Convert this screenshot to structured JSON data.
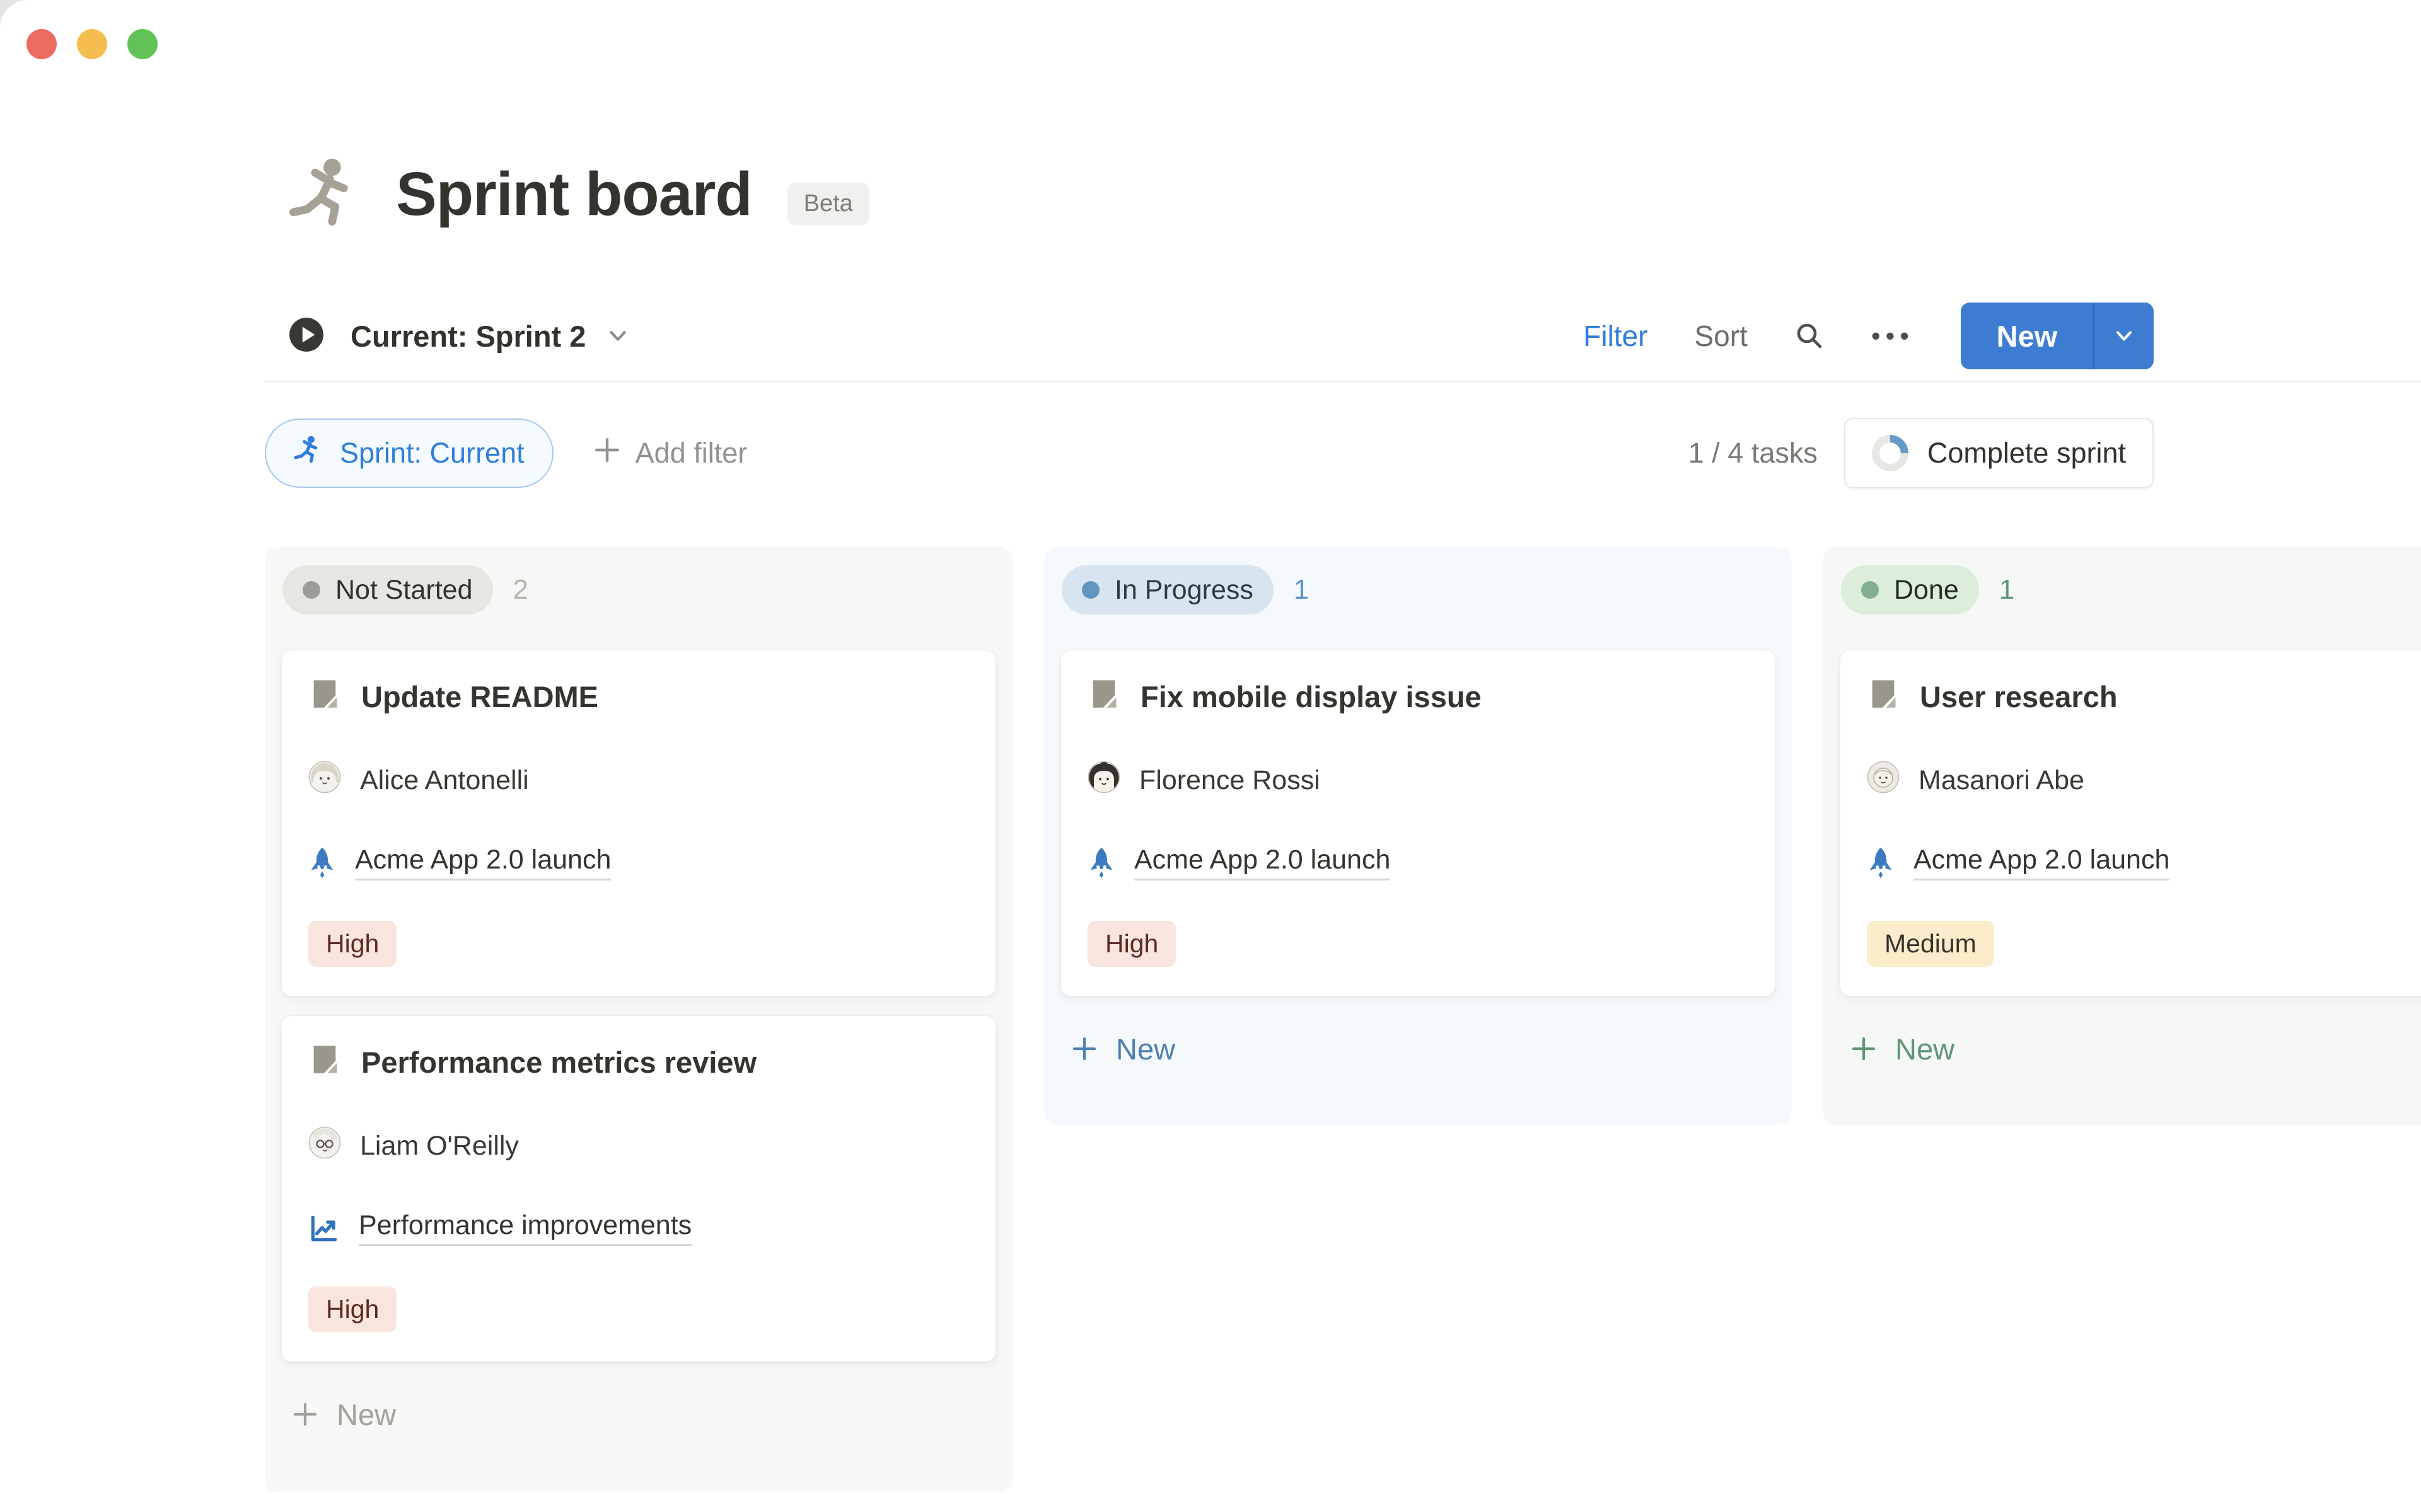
{
  "window": {
    "traffic_lights": [
      {
        "name": "close",
        "color": "#ED6A5F"
      },
      {
        "name": "minimize",
        "color": "#F5BD4F"
      },
      {
        "name": "zoom",
        "color": "#61C355"
      }
    ]
  },
  "header": {
    "icon": "runner-icon",
    "icon_color": "#A5A196",
    "title": "Sprint board",
    "badge": "Beta"
  },
  "toolbar": {
    "view_icon": "play-circle-icon",
    "view_label": "Current: Sprint 2",
    "filter_label": "Filter",
    "sort_label": "Sort",
    "search_icon": "search-icon",
    "more_icon": "ellipsis-icon",
    "more_glyph": "•••",
    "new_button": {
      "label": "New",
      "bg": "#3E7CD2"
    }
  },
  "filter_bar": {
    "chip": {
      "icon": "runner-icon",
      "label": "Sprint: Current",
      "color": "#2E7DDB"
    },
    "add_filter_label": "Add filter",
    "tasks_summary": "1 / 4 tasks",
    "complete_sprint": {
      "label": "Complete sprint",
      "progress_percent": 25,
      "arc_color": "#639AC8",
      "ring_color": "#E8E7E3"
    }
  },
  "board": {
    "columns": [
      {
        "id": "not-started",
        "label": "Not Started",
        "count": "2",
        "column_bg": "#F7F7F5",
        "pill_bg": "#E7E6E3",
        "dot_color": "#9D9C99",
        "label_color": "#33312C",
        "count_color": "#B6B5B1",
        "new_color": "#A3A19D",
        "new_label": "New",
        "cards": [
          {
            "title": "Update README",
            "assignee": "Alice Antonelli",
            "avatar": "alice",
            "project_icon": "rocket-icon",
            "project": "Acme App 2.0 launch",
            "priority": "High",
            "priority_type": "high"
          },
          {
            "title": "Performance metrics review",
            "assignee": "Liam O'Reilly",
            "avatar": "liam",
            "project_icon": "chart-icon",
            "project": "Performance improvements",
            "priority": "High",
            "priority_type": "high"
          }
        ]
      },
      {
        "id": "in-progress",
        "label": "In Progress",
        "count": "1",
        "column_bg": "#F6F9FC",
        "pill_bg": "#D8E5F0",
        "dot_color": "#6396BE",
        "label_color": "#2E3A45",
        "count_color": "#5B94C8",
        "new_color": "#4C80B4",
        "new_label": "New",
        "cards": [
          {
            "title": "Fix mobile display issue",
            "assignee": "Florence Rossi",
            "avatar": "florence",
            "project_icon": "rocket-icon",
            "project": "Acme App 2.0 launch",
            "priority": "High",
            "priority_type": "high"
          }
        ]
      },
      {
        "id": "done",
        "label": "Done",
        "count": "1",
        "column_bg": "#F5F8F4",
        "pill_bg": "#DCEDDC",
        "dot_color": "#84AE8D",
        "label_color": "#272B27",
        "count_color": "#619878",
        "new_color": "#5F9577",
        "new_label": "New",
        "cards": [
          {
            "title": "User research",
            "assignee": "Masanori Abe",
            "avatar": "masanori",
            "project_icon": "rocket-icon",
            "project": "Acme App 2.0 launch",
            "priority": "Medium",
            "priority_type": "medium"
          }
        ]
      }
    ]
  },
  "colors": {
    "accent_blue": "#2E7DDB",
    "rocket_blue": "#3C7BC2",
    "chart_blue": "#2F72BE",
    "page_icon_gray": "#9A968C",
    "tag_high_bg": "#FAE4DE",
    "tag_high_text": "#5D2B24",
    "tag_medium_bg": "#FBEDCC",
    "tag_medium_text": "#39322B"
  }
}
